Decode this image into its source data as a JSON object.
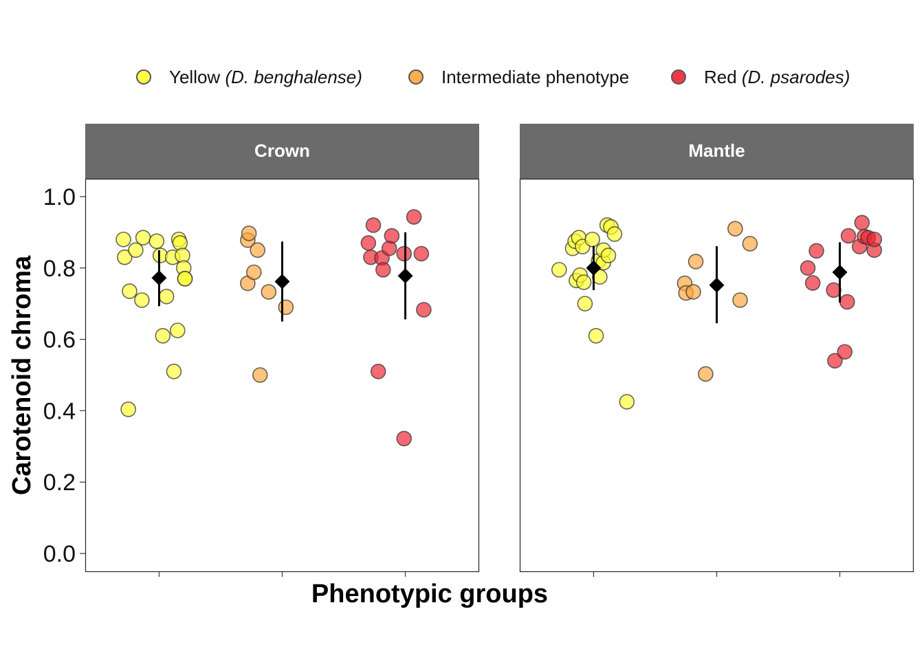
{
  "legend": {
    "yellow": {
      "text": "Yellow ",
      "italic": "(D. benghalense)",
      "color": "#FFFF33"
    },
    "intermediate": {
      "text": "Intermediate phenotype",
      "italic": "",
      "color": "#FFA63C"
    },
    "red": {
      "text": "Red ",
      "italic": "(D. psarodes)",
      "color": "#EE2430"
    }
  },
  "chart_data": {
    "type": "scatter",
    "xlabel": "Phenotypic groups",
    "ylabel": "Carotenoid chroma",
    "ylim": [
      -0.05,
      1.05
    ],
    "yticks": [
      "0.0",
      "0.2",
      "0.4",
      "0.6",
      "0.8",
      "1.0"
    ],
    "grid": false,
    "legend_position": "top",
    "groups": [
      "Yellow (D. benghalense)",
      "Intermediate phenotype",
      "Red (D. psarodes)"
    ],
    "summary_marker": "black diamond with error bar",
    "panels": [
      {
        "title": "Crown",
        "series": [
          {
            "group": "yellow",
            "x": [
              0.71,
              0.72,
              0.76,
              0.81,
              0.86,
              0.87,
              0.98,
              1.01,
              1.03,
              1.06,
              1.12,
              1.11,
              1.16,
              1.15,
              1.17,
              1.19,
              1.2,
              1.21,
              1.21,
              0.75
            ],
            "y": [
              0.88,
              0.83,
              0.735,
              0.85,
              0.71,
              0.885,
              0.875,
              0.835,
              0.61,
              0.72,
              0.51,
              0.83,
              0.88,
              0.625,
              0.87,
              0.835,
              0.8,
              0.77,
              0.77,
              0.404
            ],
            "mean": 0.772,
            "lower": 0.693,
            "upper": 0.85
          },
          {
            "group": "intermediate",
            "x": [
              1.72,
              1.73,
              1.72,
              1.77,
              1.8,
              1.82,
              1.89,
              2.03
            ],
            "y": [
              0.878,
              0.897,
              0.757,
              0.788,
              0.85,
              0.5,
              0.733,
              0.69
            ],
            "mean": 0.762,
            "lower": 0.65,
            "upper": 0.874
          },
          {
            "group": "red",
            "x": [
              2.7,
              2.72,
              2.74,
              2.78,
              2.81,
              2.82,
              2.87,
              2.89,
              2.99,
              3.07,
              3.13,
              3.15,
              2.99
            ],
            "y": [
              0.87,
              0.83,
              0.92,
              0.51,
              0.828,
              0.795,
              0.855,
              0.89,
              0.84,
              0.943,
              0.84,
              0.683,
              0.322
            ],
            "mean": 0.778,
            "lower": 0.656,
            "upper": 0.9
          }
        ]
      },
      {
        "title": "Mantle",
        "series": [
          {
            "group": "yellow",
            "x": [
              0.72,
              0.83,
              0.85,
              0.86,
              0.88,
              0.89,
              0.91,
              0.92,
              0.93,
              0.99,
              1.02,
              1.04,
              1.05,
              1.08,
              1.08,
              1.11,
              1.12,
              1.14,
              1.17,
              1.27
            ],
            "y": [
              0.795,
              0.855,
              0.875,
              0.765,
              0.885,
              0.78,
              0.86,
              0.76,
              0.7,
              0.88,
              0.61,
              0.82,
              0.775,
              0.815,
              0.85,
              0.92,
              0.835,
              0.915,
              0.895,
              0.425
            ],
            "mean": 0.8,
            "lower": 0.738,
            "upper": 0.862
          },
          {
            "group": "intermediate",
            "x": [
              1.74,
              1.75,
              1.81,
              1.83,
              1.91,
              2.15,
              2.19,
              2.27
            ],
            "y": [
              0.757,
              0.73,
              0.733,
              0.818,
              0.503,
              0.91,
              0.71,
              0.868
            ],
            "mean": 0.752,
            "lower": 0.645,
            "upper": 0.861
          },
          {
            "group": "red",
            "x": [
              2.74,
              2.78,
              2.81,
              2.95,
              2.96,
              3.04,
              3.06,
              3.07,
              3.16,
              3.18,
              3.2,
              3.23,
              3.28,
              3.28
            ],
            "y": [
              0.8,
              0.758,
              0.848,
              0.738,
              0.54,
              0.565,
              0.705,
              0.89,
              0.86,
              0.927,
              0.888,
              0.885,
              0.85,
              0.88
            ],
            "mean": 0.788,
            "lower": 0.703,
            "upper": 0.872
          }
        ]
      }
    ]
  }
}
